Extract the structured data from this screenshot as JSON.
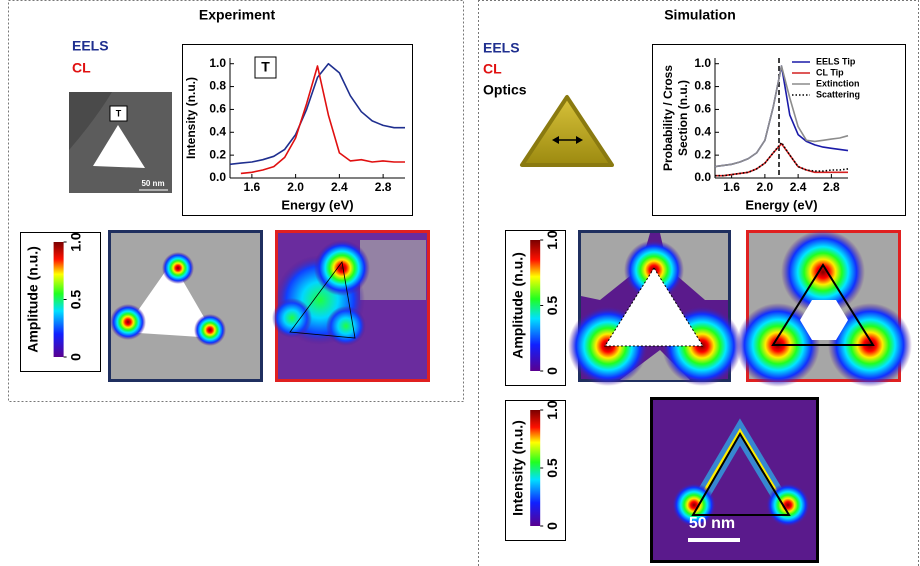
{
  "panels": {
    "experiment_title": "Experiment",
    "simulation_title": "Simulation",
    "tem_tip_label": "T",
    "tem_scale": "50 nm",
    "sim_scale": "50 nm",
    "sim_legend": [
      "EELS",
      "CL",
      "Optics"
    ]
  },
  "colorbars": [
    {
      "label": "Amplitude (n.u.)",
      "lim": [
        0,
        1
      ],
      "ticks": [
        0,
        0.5,
        {
          "value": 1,
          "label": "1.0"
        }
      ]
    },
    {
      "label": "Amplitude (n.u.)",
      "lim": [
        0,
        1
      ],
      "ticks": [
        0,
        0.5,
        {
          "value": 1,
          "label": "1.0"
        }
      ]
    },
    {
      "label": "Intensity (n.u.)",
      "lim": [
        0,
        1
      ],
      "ticks": [
        0,
        0.5,
        {
          "value": 1,
          "label": "1.0"
        }
      ]
    }
  ],
  "chart_data": [
    {
      "type": "line",
      "xlabel": "Energy (eV)",
      "ylabel": [
        "Intensity (n.u.)"
      ],
      "annotation": "T",
      "legend": "outside-left",
      "x": [
        1.4,
        1.5,
        1.6,
        1.7,
        1.8,
        1.9,
        2.0,
        2.1,
        2.2,
        2.3,
        2.4,
        2.5,
        2.6,
        2.7,
        2.8,
        2.9,
        3.0
      ],
      "series": [
        {
          "name": "EELS",
          "color": "#1f2f8f",
          "values": [
            0.12,
            0.13,
            0.14,
            0.16,
            0.19,
            0.25,
            0.38,
            0.6,
            0.88,
            1.0,
            0.92,
            0.72,
            0.58,
            0.5,
            0.46,
            0.44,
            0.44
          ]
        },
        {
          "name": "CL",
          "color": "#e01010",
          "values": [
            null,
            0.04,
            0.05,
            0.07,
            0.1,
            0.18,
            0.35,
            0.65,
            0.98,
            0.55,
            0.22,
            0.15,
            0.16,
            0.14,
            0.15,
            0.14,
            0.14
          ]
        }
      ],
      "xlim": [
        1.4,
        3.0
      ],
      "xticks": [
        1.6,
        {
          "value": 2,
          "label": "2.0"
        },
        2.4,
        2.8
      ],
      "ylim": [
        0,
        1.05
      ],
      "yticks": [
        {
          "value": 0,
          "label": "0.0"
        },
        0.2,
        0.4,
        0.6,
        0.8,
        {
          "value": 1,
          "label": "1.0"
        }
      ]
    },
    {
      "type": "line",
      "xlabel": "Energy (eV)",
      "ylabel": [
        "Probability / Cross",
        "Section (n.u.)"
      ],
      "legend": "upper right",
      "marker_x": 2.17,
      "x": [
        1.4,
        1.5,
        1.6,
        1.7,
        1.8,
        1.9,
        2.0,
        2.1,
        2.2,
        2.3,
        2.4,
        2.5,
        2.6,
        2.7,
        2.8,
        2.9,
        3.0
      ],
      "series": [
        {
          "name": "EELS Tip",
          "color": "#1a1aa8",
          "values": [
            0.1,
            0.11,
            0.12,
            0.14,
            0.17,
            0.22,
            0.33,
            0.62,
            0.98,
            0.55,
            0.38,
            0.32,
            0.29,
            0.27,
            0.26,
            0.25,
            0.24
          ]
        },
        {
          "name": "CL Tip",
          "color": "#d42020",
          "values": [
            0.02,
            0.02,
            0.03,
            0.04,
            0.05,
            0.08,
            0.13,
            0.22,
            0.3,
            0.2,
            0.1,
            0.07,
            0.05,
            0.05,
            0.05,
            0.05,
            0.05
          ]
        },
        {
          "name": "Extinction",
          "color": "#8c8c8c",
          "values": [
            0.1,
            0.11,
            0.12,
            0.14,
            0.17,
            0.22,
            0.33,
            0.62,
            0.98,
            0.7,
            0.45,
            0.33,
            0.32,
            0.33,
            0.34,
            0.35,
            0.37
          ]
        },
        {
          "name": "Scattering",
          "color": "#000000",
          "style": "dotted",
          "values": [
            0.02,
            0.02,
            0.03,
            0.04,
            0.05,
            0.08,
            0.13,
            0.22,
            0.31,
            0.2,
            0.1,
            0.07,
            0.06,
            0.06,
            0.07,
            0.07,
            0.08
          ]
        }
      ],
      "xlim": [
        1.4,
        3.0
      ],
      "xticks": [
        1.6,
        {
          "value": 2,
          "label": "2.0"
        },
        2.4,
        2.8
      ],
      "ylim": [
        0,
        1.05
      ],
      "yticks": [
        {
          "value": 0,
          "label": "0.0"
        },
        0.2,
        0.4,
        0.6,
        0.8,
        {
          "value": 1,
          "label": "1.0"
        }
      ]
    }
  ]
}
